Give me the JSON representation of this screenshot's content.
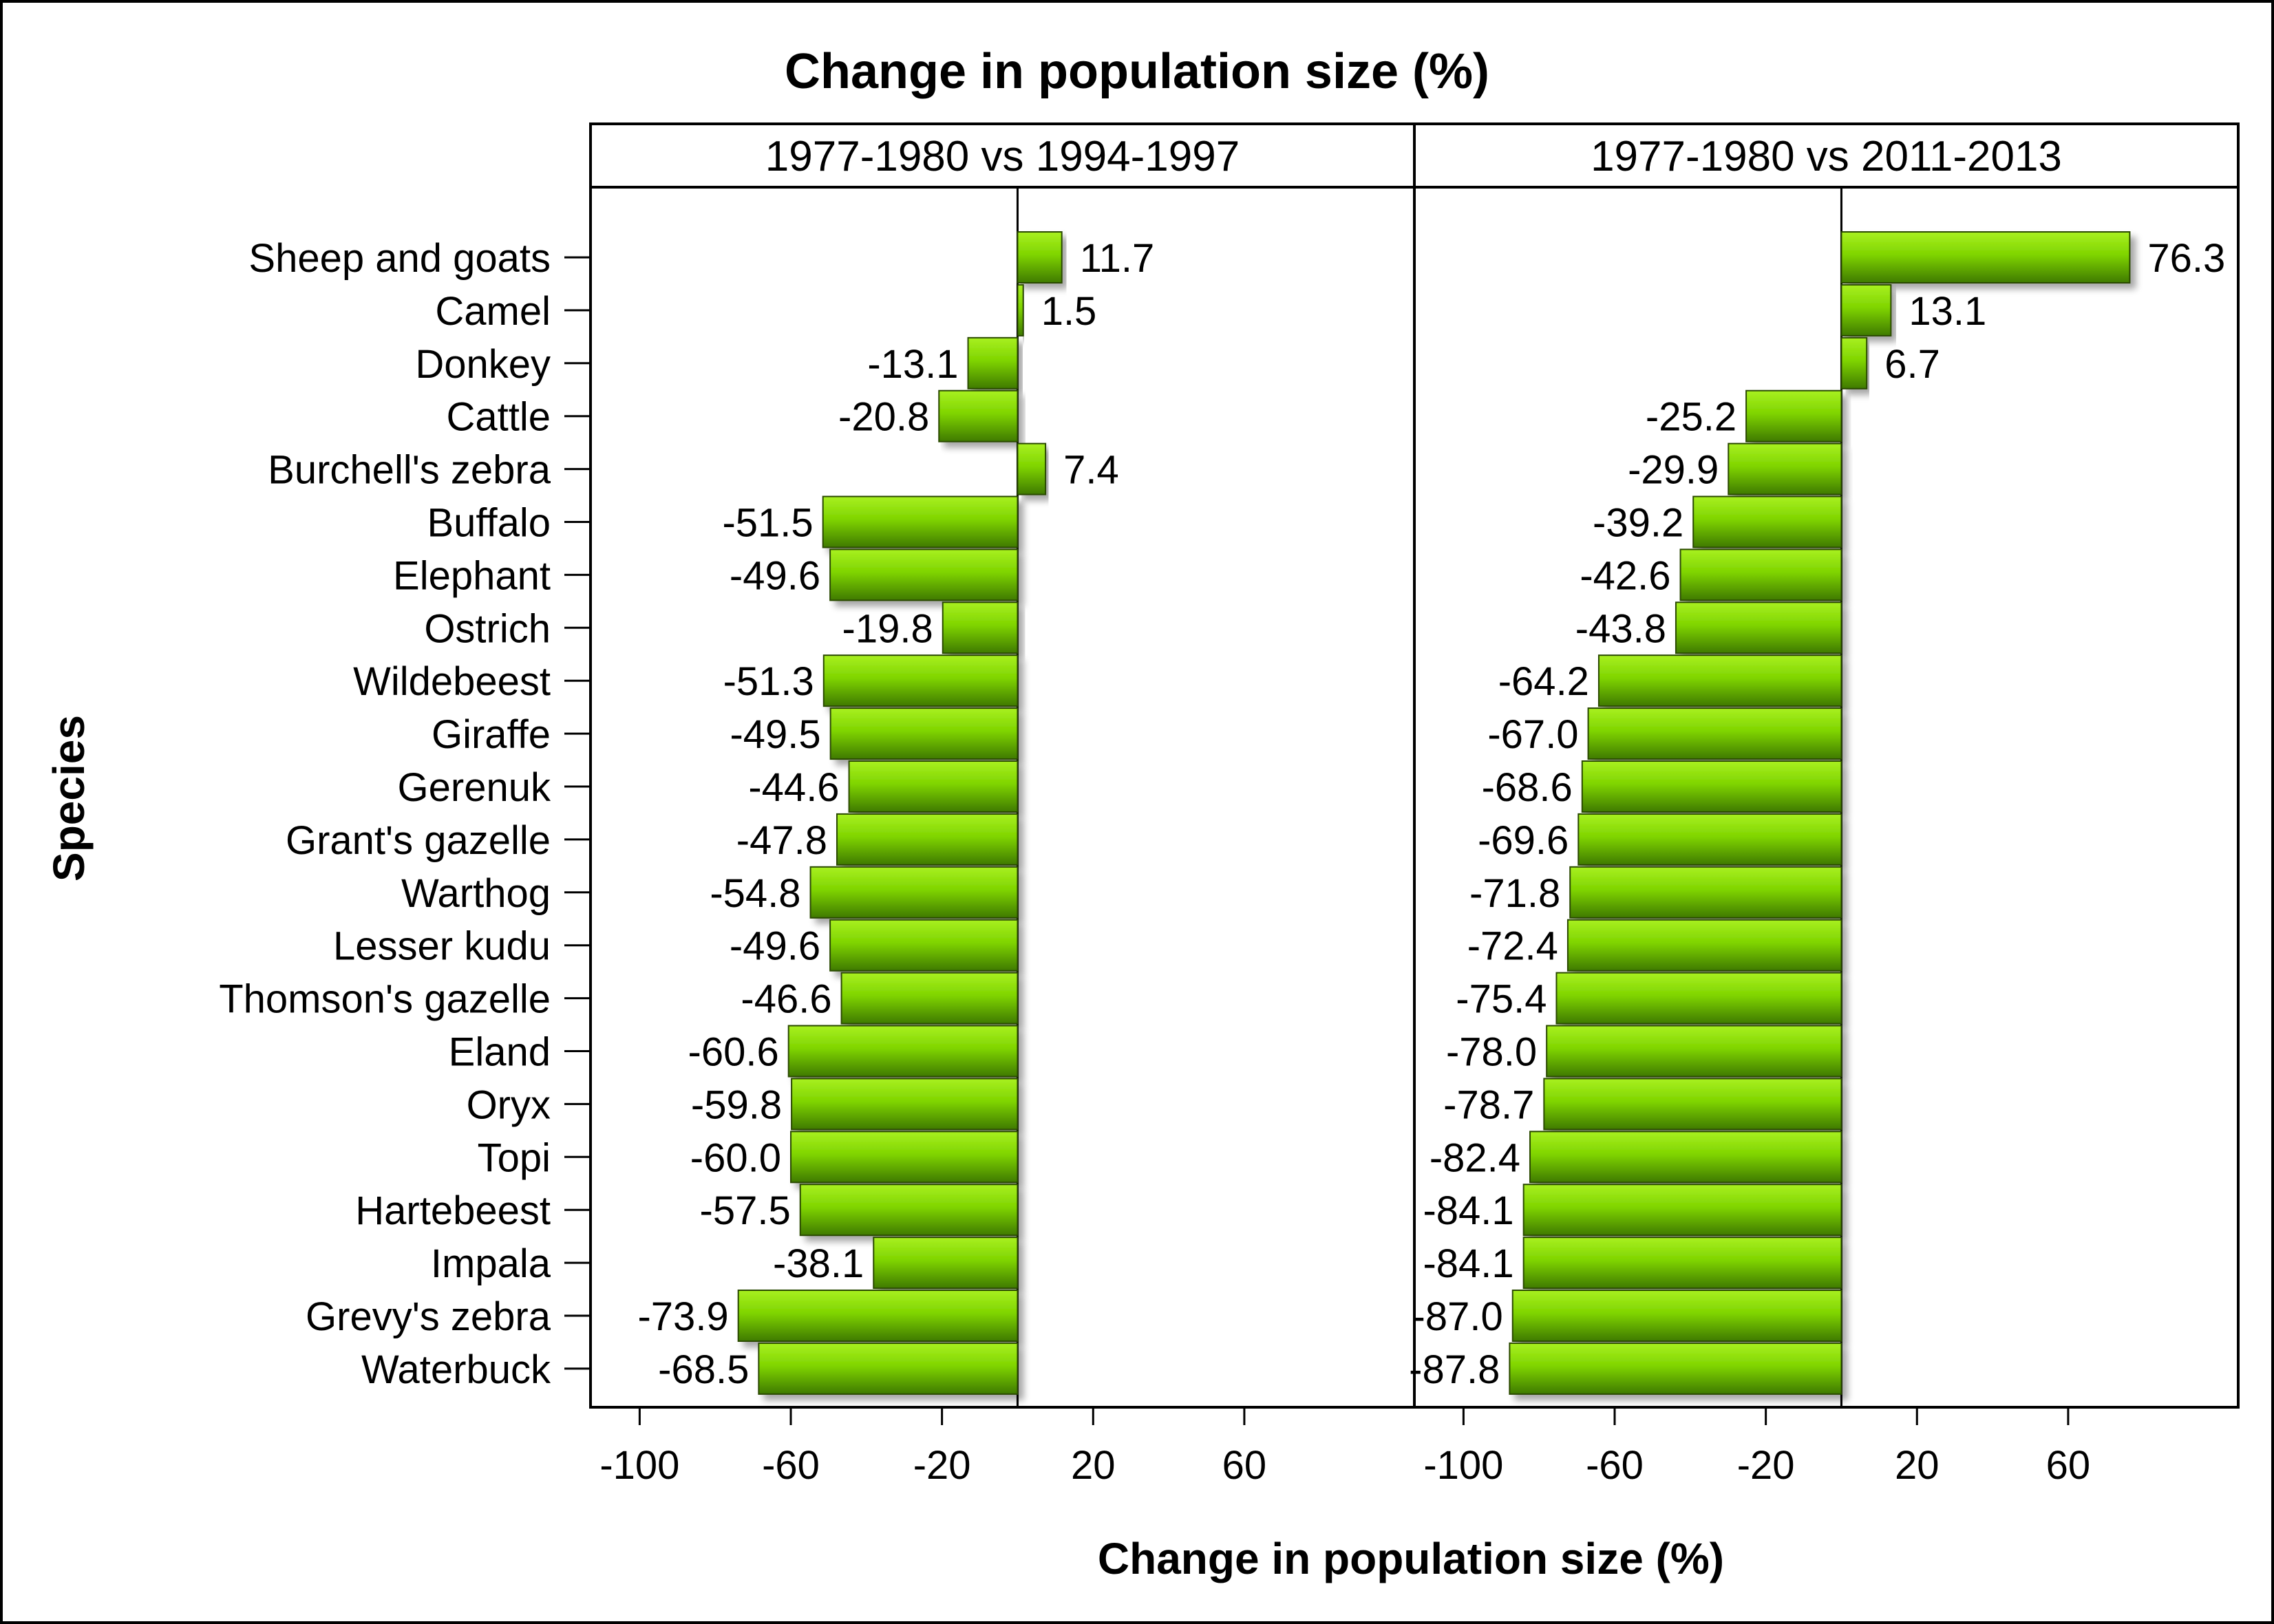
{
  "chart_data": {
    "type": "bar",
    "orientation": "horizontal",
    "title": "Change in population size (%)",
    "xlabel": "Change in population size (%)",
    "ylabel": "Species",
    "xlim": [
      -113,
      105
    ],
    "xticks": [
      -100,
      -60,
      -20,
      20,
      60
    ],
    "xtick_labels": [
      "-100",
      "-60",
      "-20",
      "20",
      "60"
    ],
    "categories": [
      "Sheep and goats",
      "Camel",
      "Donkey",
      "Cattle",
      "Burchell's zebra",
      "Buffalo",
      "Elephant",
      "Ostrich",
      "Wildebeest",
      "Giraffe",
      "Gerenuk",
      "Grant's gazelle",
      "Warthog",
      "Lesser kudu",
      "Thomson's gazelle",
      "Eland",
      "Oryx",
      "Topi",
      "Hartebeest",
      "Impala",
      "Grevy's zebra",
      "Waterbuck"
    ],
    "panels": [
      {
        "name": "1977-1980 vs 1994-1997",
        "values": [
          11.7,
          1.5,
          -13.1,
          -20.8,
          7.4,
          -51.5,
          -49.6,
          -19.8,
          -51.3,
          -49.5,
          -44.6,
          -47.8,
          -54.8,
          -49.6,
          -46.6,
          -60.6,
          -59.8,
          -60.0,
          -57.5,
          -38.1,
          -73.9,
          -68.5
        ],
        "labels": [
          "11.7",
          "1.5",
          "-13.1",
          "-20.8",
          "7.4",
          "-51.5",
          "-49.6",
          "-19.8",
          "-51.3",
          "-49.5",
          "-44.6",
          "-47.8",
          "-54.8",
          "-49.6",
          "-46.6",
          "-60.6",
          "-59.8",
          "-60.0",
          "-57.5",
          "-38.1",
          "-73.9",
          "-68.5"
        ]
      },
      {
        "name": "1977-1980 vs 2011-2013",
        "values": [
          76.3,
          13.1,
          6.7,
          -25.2,
          -29.9,
          -39.2,
          -42.6,
          -43.8,
          -64.2,
          -67.0,
          -68.6,
          -69.6,
          -71.8,
          -72.4,
          -75.4,
          -78.0,
          -78.7,
          -82.4,
          -84.1,
          -84.1,
          -87.0,
          -87.8
        ],
        "labels": [
          "76.3",
          "13.1",
          "6.7",
          "-25.2",
          "-29.9",
          "-39.2",
          "-42.6",
          "-43.8",
          "-64.2",
          "-67.0",
          "-68.6",
          "-69.6",
          "-71.8",
          "-72.4",
          "-75.4",
          "-78.0",
          "-78.7",
          "-82.4",
          "-84.1",
          "-84.1",
          "-87.0",
          "-87.8"
        ]
      }
    ],
    "bar_colors": {
      "light": "#a8f020",
      "mid": "#7fd400",
      "dark": "#3f7a00"
    },
    "grid": false,
    "legend": "none"
  }
}
